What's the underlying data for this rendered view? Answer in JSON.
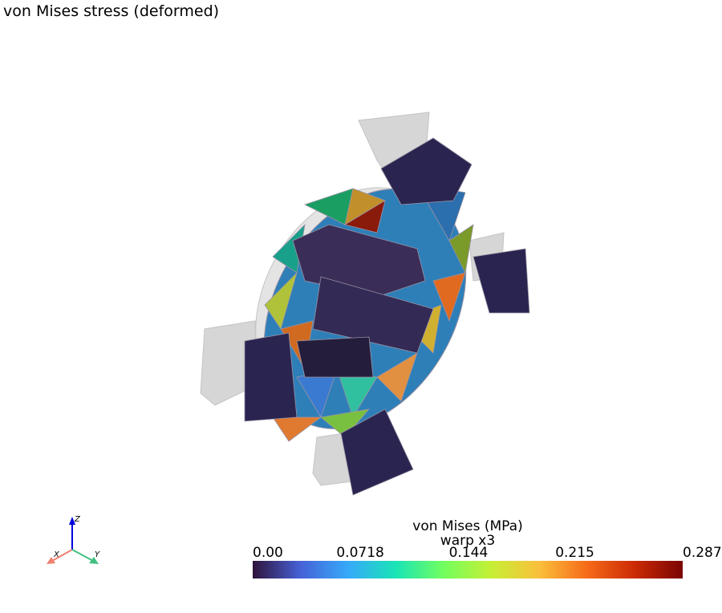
{
  "title": "von Mises stress (deformed)",
  "colorbar": {
    "title": "von Mises (MPa)",
    "subtitle": "warp x3",
    "range": [
      0,
      0.287
    ],
    "ticks": [
      {
        "value": 0,
        "label": "0.00"
      },
      0.0718,
      0.144,
      0.215,
      0.287
    ],
    "colormap": [
      "#30123b",
      "#4662d7",
      "#36aaf9",
      "#1ae4b6",
      "#72fe5e",
      "#c7ef34",
      "#fabf3b",
      "#f66b19",
      "#cb2a04",
      "#7a0403"
    ]
  },
  "axes_widget": {
    "z": "Z",
    "x": "X",
    "y": "Y"
  }
}
